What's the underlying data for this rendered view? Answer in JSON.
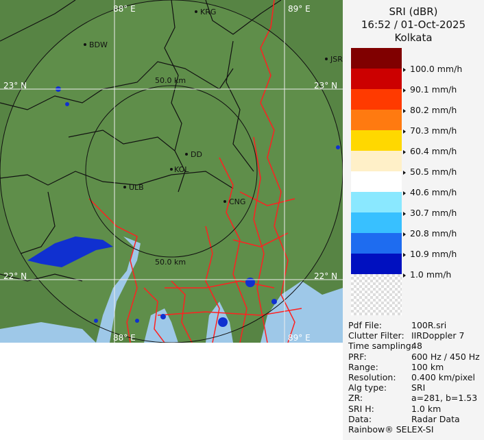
{
  "header": {
    "product": "SRI (dBR)",
    "datetime": "16:52 / 01-Oct-2025",
    "site": "Kolkata"
  },
  "legend": {
    "colors": [
      "#800000",
      "#cc0000",
      "#ff3a00",
      "#ff7a10",
      "#ffd800",
      "#fff0c8",
      "#ffffff",
      "#8ae8ff",
      "#38c0ff",
      "#1e6cf0",
      "#0010c0"
    ],
    "labels": [
      "100.0 mm/h",
      "90.1 mm/h",
      "80.2 mm/h",
      "70.3 mm/h",
      "60.4 mm/h",
      "50.5 mm/h",
      "40.6 mm/h",
      "30.7 mm/h",
      "20.8 mm/h",
      "10.9 mm/h",
      "1.0 mm/h"
    ]
  },
  "info": [
    {
      "key": "Pdf File:",
      "value": "100R.sri"
    },
    {
      "key": "Clutter Filter:",
      "value": "IIRDoppler 7"
    },
    {
      "key": "Time sampling:",
      "value": "48"
    },
    {
      "key": "PRF:",
      "value": "600 Hz / 450 Hz"
    },
    {
      "key": "Range:",
      "value": "100 km"
    },
    {
      "key": "Resolution:",
      "value": "0.400 km/pixel"
    },
    {
      "key": "Alg type:",
      "value": "SRI"
    },
    {
      "key": "ZR:",
      "value": "a=281, b=1.53"
    },
    {
      "key": "SRI H:",
      "value": "1.0 km"
    },
    {
      "key": "Data:",
      "value": "Radar Data"
    }
  ],
  "footer": "Rainbow® SELEX-SI",
  "map": {
    "grid": {
      "lon_left": "88° E",
      "lon_right": "89° E",
      "lat_top": "23° N",
      "lat_bottom": "22° N"
    },
    "rings": [
      "50.0 km",
      "50.0 km"
    ],
    "cities": [
      "KRG",
      "BDW",
      "JSR",
      "DD",
      "KOL",
      "ULB",
      "CNG"
    ],
    "colors": {
      "land": "#5c8a48",
      "water": "#9ec8e8",
      "rivers": "#ff2020",
      "borders": "#111111"
    }
  }
}
